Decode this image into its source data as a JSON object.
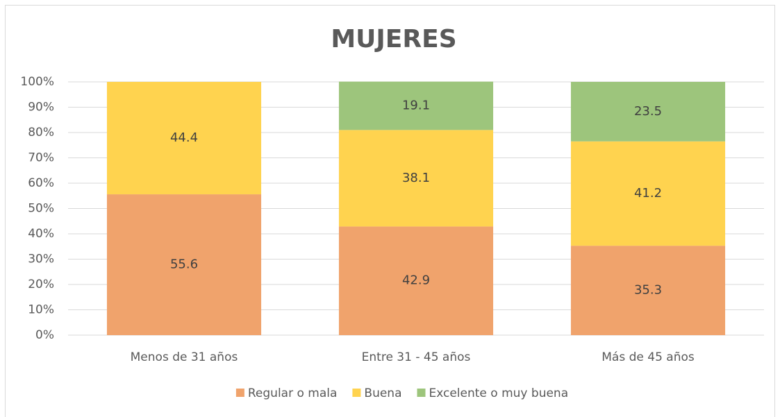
{
  "chart_data": {
    "type": "stacked_bar",
    "title": "MUJERES",
    "categories": [
      "Menos de 31 años",
      "Entre 31 - 45 años",
      "Más de 45 años"
    ],
    "series": [
      {
        "name": "Regular o mala",
        "color": "#f0a36c",
        "values": [
          55.6,
          42.9,
          35.3
        ]
      },
      {
        "name": "Buena",
        "color": "#ffd34f",
        "values": [
          44.4,
          38.1,
          41.2
        ]
      },
      {
        "name": "Excelente o muy buena",
        "color": "#9dc57c",
        "values": [
          null,
          19.1,
          23.5
        ]
      }
    ],
    "ylim": [
      0,
      100
    ],
    "yticks": [
      {
        "value": 0,
        "label": "0%"
      },
      {
        "value": 10,
        "label": "10%"
      },
      {
        "value": 20,
        "label": "20%"
      },
      {
        "value": 30,
        "label": "30%"
      },
      {
        "value": 40,
        "label": "40%"
      },
      {
        "value": 50,
        "label": "50%"
      },
      {
        "value": 60,
        "label": "60%"
      },
      {
        "value": 70,
        "label": "70%"
      },
      {
        "value": 80,
        "label": "80%"
      },
      {
        "value": 90,
        "label": "90%"
      },
      {
        "value": 100,
        "label": "100%"
      }
    ],
    "grid": true,
    "legend": "bottom"
  }
}
